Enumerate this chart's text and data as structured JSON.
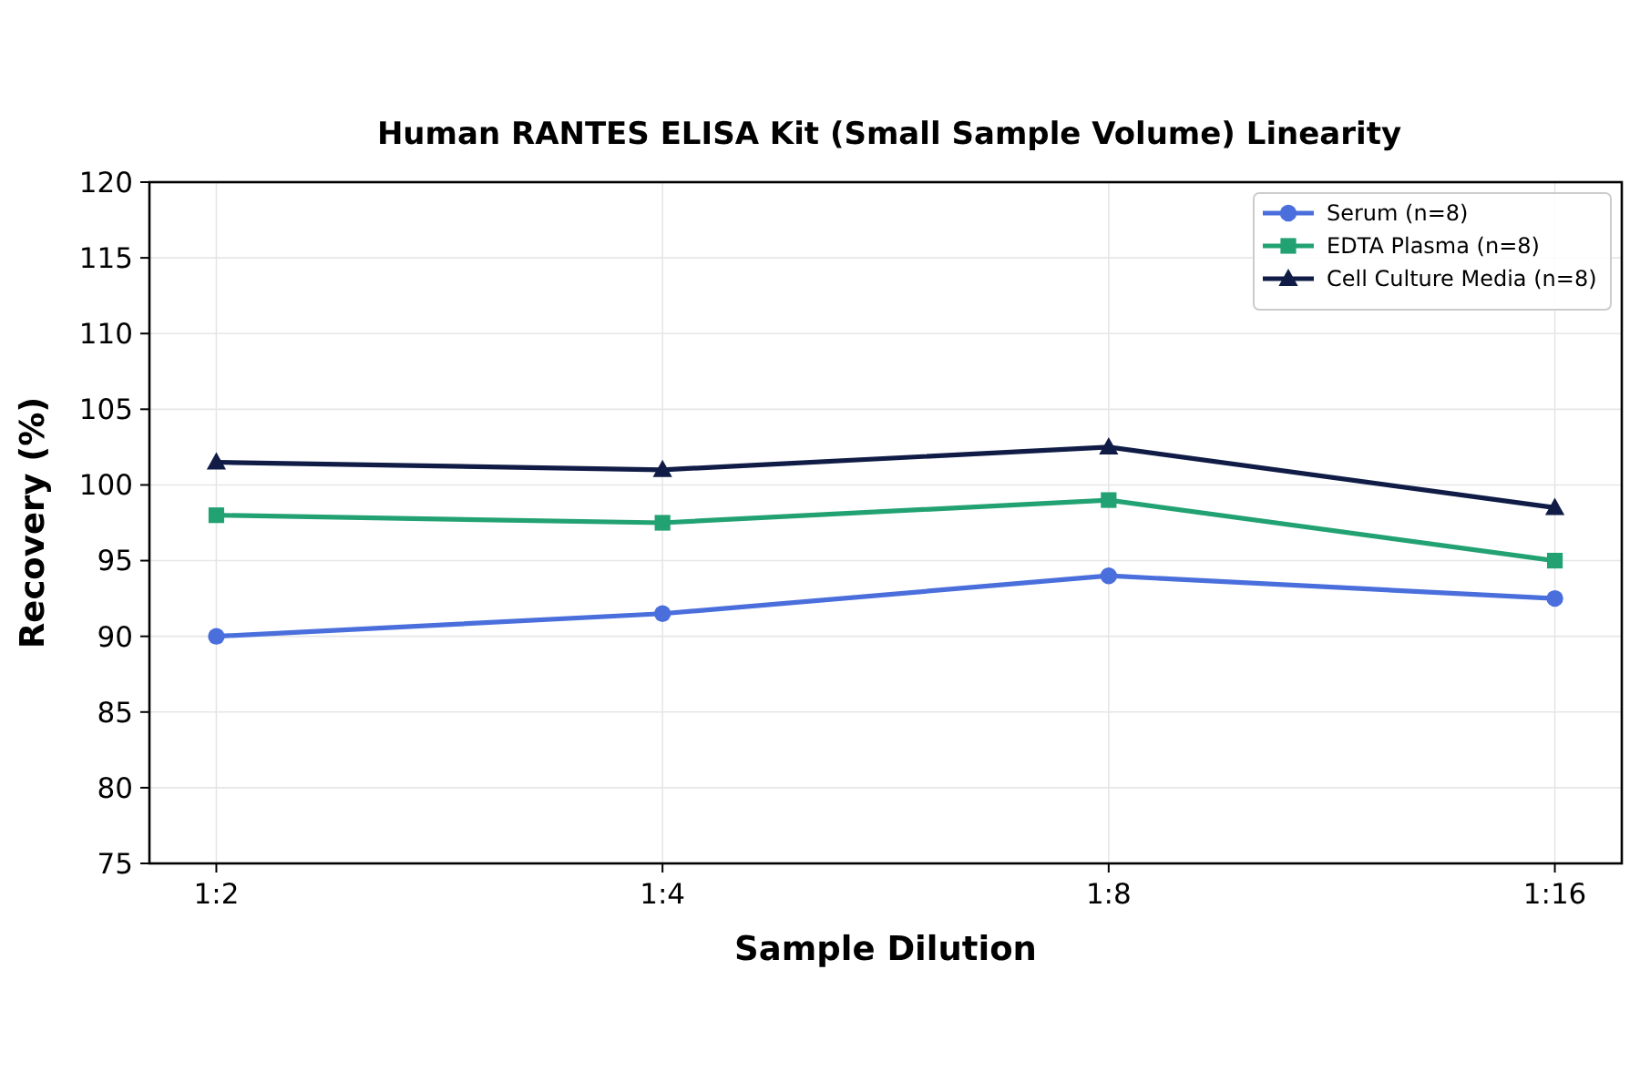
{
  "chart_data": {
    "type": "line",
    "title": "Human RANTES ELISA Kit (Small Sample Volume) Linearity",
    "xlabel": "Sample Dilution",
    "ylabel": "Recovery (%)",
    "categories": [
      "1:2",
      "1:4",
      "1:8",
      "1:16"
    ],
    "series": [
      {
        "name": "Serum (n=8)",
        "color": "#4a6fdc",
        "marker": "circle",
        "values": [
          90,
          91.5,
          94,
          92.5
        ]
      },
      {
        "name": "EDTA Plasma (n=8)",
        "color": "#22a273",
        "marker": "square",
        "values": [
          98,
          97.5,
          99,
          95
        ]
      },
      {
        "name": "Cell Culture Media (n=8)",
        "color": "#101c46",
        "marker": "triangle",
        "values": [
          101.5,
          101,
          102.5,
          98.5
        ]
      }
    ],
    "ylim": [
      75,
      120
    ],
    "yticks": [
      75,
      80,
      85,
      90,
      95,
      100,
      105,
      110,
      115,
      120
    ],
    "grid": true,
    "legend": "top right",
    "line_style": "solid"
  }
}
